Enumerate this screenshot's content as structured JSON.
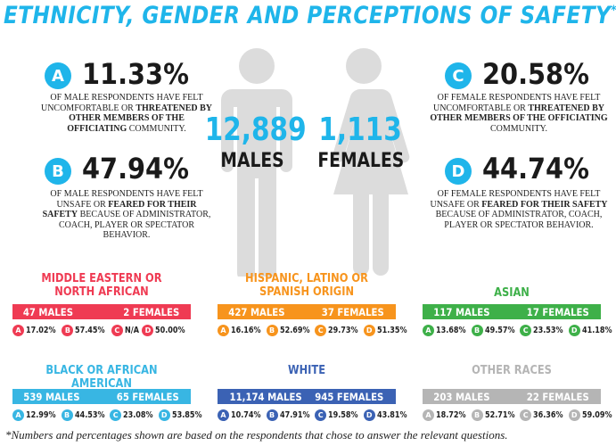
{
  "title": "ETHNICITY, GENDER AND PERCEPTIONS OF SAFETY",
  "title_mark": "*",
  "colors": {
    "accent": "#1fb5ea",
    "silhouette": "#dcdcdc",
    "red": "#ef3b53",
    "orange": "#f7941d",
    "green": "#3eb049",
    "light_blue": "#38b6e3",
    "dark_blue": "#3b62b4",
    "gray": "#b5b5b5"
  },
  "males": {
    "count": "12,889",
    "label": "MALES"
  },
  "females": {
    "count": "1,113",
    "label": "FEMALES"
  },
  "stats": {
    "a": {
      "letter": "A",
      "pct": "11.33%",
      "desc_pre": "OF MALE RESPONDENTS HAVE FELT UNCOMFORTABLE OR",
      "desc_bold": "THREATENED BY OTHER MEMBERS OF THE OFFICIATING",
      "desc_post": "COMMUNITY."
    },
    "b": {
      "letter": "B",
      "pct": "47.94%",
      "desc_pre": "OF MALE RESPONDENTS HAVE FELT UNSAFE OR",
      "desc_bold": "FEARED FOR THEIR SAFETY",
      "desc_post": "BECAUSE OF ADMINISTRATOR, COACH, PLAYER OR SPECTATOR BEHAVIOR."
    },
    "c": {
      "letter": "C",
      "pct": "20.58%",
      "desc_pre": "OF FEMALE RESPONDENTS HAVE FELT UNCOMFORTABLE OR",
      "desc_bold": "THREATENED BY OTHER MEMBERS OF THE OFFICIATING",
      "desc_post": "COMMUNITY."
    },
    "d": {
      "letter": "D",
      "pct": "44.74%",
      "desc_pre": "OF FEMALE RESPONDENTS HAVE FELT UNSAFE OR",
      "desc_bold": "FEARED FOR THEIR SAFETY",
      "desc_post": "BECAUSE OF ADMINISTRATOR, COACH, PLAYER OR SPECTATOR BEHAVIOR."
    }
  },
  "groups": [
    {
      "name": "MIDDLE EASTERN OR NORTH AFRICAN",
      "color": "#ef3b53",
      "males": "47 MALES",
      "females": "2 FEMALES",
      "a": "17.02%",
      "b": "57.45%",
      "c": "N/A",
      "d": "50.00%"
    },
    {
      "name": "HISPANIC, LATINO OR SPANISH ORIGIN",
      "color": "#f7941d",
      "males": "427 MALES",
      "females": "37 FEMALES",
      "a": "16.16%",
      "b": "52.69%",
      "c": "29.73%",
      "d": "51.35%"
    },
    {
      "name": "ASIAN",
      "color": "#3eb049",
      "males": "117 MALES",
      "females": "17 FEMALES",
      "a": "13.68%",
      "b": "49.57%",
      "c": "23.53%",
      "d": "41.18%"
    },
    {
      "name": "BLACK OR AFRICAN AMERICAN",
      "color": "#38b6e3",
      "males": "539 MALES",
      "females": "65 FEMALES",
      "a": "12.99%",
      "b": "44.53%",
      "c": "23.08%",
      "d": "53.85%"
    },
    {
      "name": "WHITE",
      "color": "#3b62b4",
      "males": "11,174 MALES",
      "females": "945 FEMALES",
      "a": "10.74%",
      "b": "47.91%",
      "c": "19.58%",
      "d": "43.81%"
    },
    {
      "name": "OTHER RACES",
      "color": "#b5b5b5",
      "males": "203 MALES",
      "females": "22 FEMALES",
      "a": "18.72%",
      "b": "52.71%",
      "c": "36.36%",
      "d": "59.09%"
    }
  ],
  "footnote": "*Numbers and percentages shown are based on the respondents that chose to answer the relevant questions."
}
